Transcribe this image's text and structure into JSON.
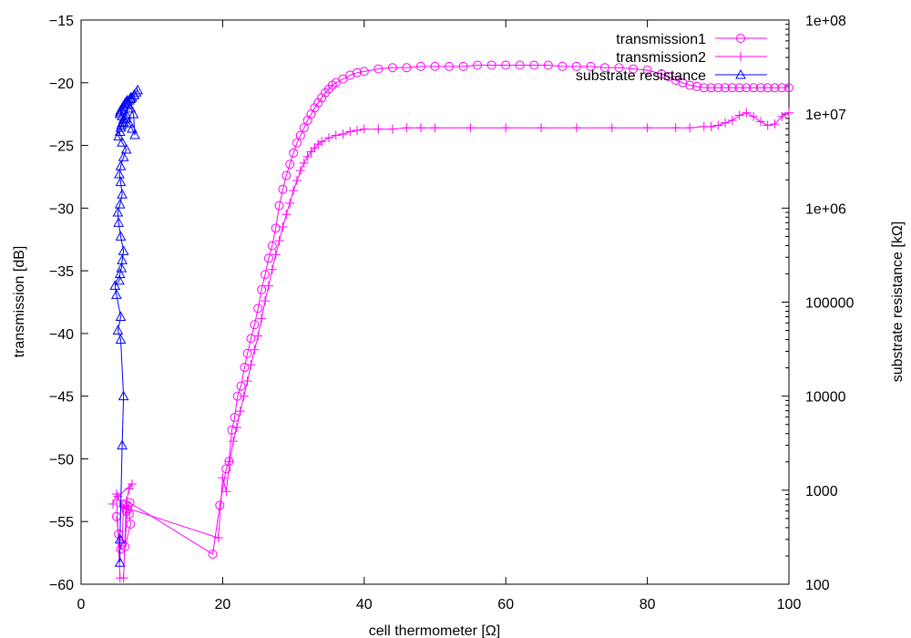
{
  "chart_data": {
    "type": "scatter",
    "title": "",
    "xlabel": "cell thermometer [Ω]",
    "ylabel": "transmission [dB]",
    "y2label": "substrate resistance [kΩ]",
    "xlim": [
      0,
      100
    ],
    "ylim": [
      -60,
      -15
    ],
    "y2lim": [
      100,
      100000000
    ],
    "y2_scale": "log",
    "grid": false,
    "legend_position": "top-right",
    "x_ticks": [
      "0",
      "20",
      "40",
      "60",
      "80",
      "100"
    ],
    "y_ticks": [
      "−60",
      "−55",
      "−50",
      "−45",
      "−40",
      "−35",
      "−30",
      "−25",
      "−20",
      "−15"
    ],
    "y2_ticks": [
      "100",
      "1000",
      "10000",
      "100000",
      "1e+06",
      "1e+07",
      "1e+08"
    ],
    "colors": {
      "transmission": "#ff00ff",
      "substrate": "#0000ff"
    },
    "series": [
      {
        "name": "transmission1",
        "axis": "left",
        "marker": "circle",
        "x": [
          5.0,
          5.3,
          5.6,
          5.8,
          6.0,
          6.4,
          6.6,
          6.8,
          7.0,
          6.2,
          6.5,
          6.9,
          18.6,
          19.6,
          20.5,
          20.9,
          21.3,
          21.7,
          22.1,
          22.6,
          23.1,
          23.5,
          24.0,
          24.5,
          25.0,
          25.5,
          26.0,
          26.5,
          27.0,
          27.5,
          28.0,
          28.5,
          29.0,
          29.5,
          30.0,
          30.5,
          31.0,
          31.5,
          32.0,
          32.5,
          33.0,
          33.5,
          34.0,
          34.5,
          35.0,
          35.5,
          36.0,
          37.0,
          38.0,
          39.0,
          40.0,
          42.0,
          44.0,
          46.0,
          48.0,
          50.0,
          52.0,
          54.0,
          56.0,
          58.0,
          60.0,
          62.0,
          64.0,
          66.0,
          68.0,
          70.0,
          72.0,
          74.0,
          76.0,
          78.0,
          80.0,
          82.0,
          83.0,
          84.0,
          85.0,
          86.0,
          87.0,
          88.0,
          89.0,
          90.0,
          91.0,
          92.0,
          93.0,
          94.0,
          95.0,
          96.0,
          97.0,
          98.0,
          99.0,
          100.0
        ],
        "y": [
          -54.6,
          -56.0,
          -57.2,
          -56.8,
          -53.6,
          -54.2,
          -53.8,
          -54.4,
          -55.2,
          -57.0,
          -54.0,
          -53.5,
          -57.6,
          -53.7,
          -50.8,
          -50.2,
          -47.7,
          -46.7,
          -45.0,
          -44.2,
          -42.7,
          -41.6,
          -40.4,
          -39.3,
          -38.0,
          -36.5,
          -35.3,
          -34.0,
          -33.0,
          -31.6,
          -29.8,
          -28.5,
          -27.4,
          -26.5,
          -25.6,
          -24.8,
          -24.2,
          -23.6,
          -23.0,
          -22.5,
          -22.0,
          -21.6,
          -21.2,
          -20.8,
          -20.5,
          -20.2,
          -20.0,
          -19.7,
          -19.4,
          -19.2,
          -19.1,
          -18.9,
          -18.8,
          -18.8,
          -18.7,
          -18.7,
          -18.7,
          -18.7,
          -18.6,
          -18.6,
          -18.6,
          -18.6,
          -18.6,
          -18.6,
          -18.7,
          -18.7,
          -18.7,
          -18.8,
          -18.8,
          -18.9,
          -19.0,
          -19.3,
          -19.5,
          -19.8,
          -20.0,
          -20.2,
          -20.3,
          -20.4,
          -20.4,
          -20.4,
          -20.4,
          -20.4,
          -20.4,
          -20.4,
          -20.4,
          -20.4,
          -20.4,
          -20.4,
          -20.4,
          -20.4
        ]
      },
      {
        "name": "transmission2",
        "axis": "left",
        "marker": "plus",
        "x": [
          4.5,
          5.0,
          5.5,
          6.0,
          6.4,
          6.8,
          7.2,
          5.2,
          5.8,
          19.4,
          20.0,
          20.5,
          21.0,
          21.5,
          22.0,
          22.5,
          23.0,
          23.5,
          24.0,
          24.5,
          25.0,
          25.5,
          26.0,
          26.5,
          27.0,
          27.5,
          28.0,
          28.5,
          29.0,
          29.5,
          30.0,
          30.5,
          31.0,
          31.5,
          32.0,
          32.5,
          33.0,
          33.5,
          34.0,
          35.0,
          36.0,
          37.0,
          38.0,
          39.0,
          40.0,
          42.0,
          44.0,
          46.0,
          48.0,
          50.0,
          55.0,
          60.0,
          65.0,
          70.0,
          75.0,
          80.0,
          84.0,
          86.0,
          88.0,
          89.0,
          90.0,
          91.0,
          92.0,
          93.0,
          94.0,
          95.0,
          96.0,
          97.0,
          98.0,
          99.0,
          100.0
        ],
        "y": [
          -53.6,
          -52.8,
          -59.5,
          -59.5,
          -53.4,
          -52.4,
          -52.0,
          -53.0,
          -53.8,
          -56.3,
          -51.5,
          -52.6,
          -50.2,
          -48.6,
          -47.5,
          -46.2,
          -45.0,
          -43.8,
          -42.5,
          -41.3,
          -40.2,
          -38.8,
          -37.4,
          -36.2,
          -34.9,
          -33.7,
          -32.6,
          -31.5,
          -30.5,
          -29.6,
          -28.6,
          -27.8,
          -27.0,
          -26.4,
          -25.9,
          -25.5,
          -25.2,
          -24.9,
          -24.7,
          -24.4,
          -24.2,
          -24.1,
          -23.9,
          -23.8,
          -23.7,
          -23.7,
          -23.7,
          -23.6,
          -23.6,
          -23.6,
          -23.6,
          -23.6,
          -23.6,
          -23.6,
          -23.6,
          -23.6,
          -23.6,
          -23.6,
          -23.5,
          -23.5,
          -23.4,
          -23.2,
          -23.0,
          -22.6,
          -22.4,
          -22.7,
          -23.1,
          -23.4,
          -23.3,
          -22.7,
          -22.4
        ]
      },
      {
        "name": "substrate resistance",
        "axis": "right",
        "marker": "triangle",
        "x": [
          5.5,
          5.5,
          5.8,
          6.0,
          5.6,
          5.2,
          5.6,
          5.0,
          4.8,
          5.4,
          5.5,
          5.7,
          5.8,
          6.0,
          5.6,
          5.3,
          5.2,
          5.5,
          5.8,
          5.6,
          5.4,
          5.6,
          6.0,
          6.4,
          5.8,
          5.3,
          5.5,
          5.6,
          5.8,
          6.0,
          5.8,
          5.5,
          5.6,
          5.9,
          6.2,
          6.5,
          6.8,
          7.0,
          7.2,
          7.5,
          7.8,
          8.0,
          7.5,
          7.0,
          6.5,
          6.2,
          6.0,
          5.8,
          5.5,
          6.3,
          6.8,
          7.2,
          7.6,
          7.4,
          7.0,
          6.6,
          6.4,
          6.0,
          5.7
        ],
        "y": [
          170,
          300,
          3000,
          10000,
          40000,
          50000,
          70000,
          120000,
          150000,
          170000,
          200000,
          230000,
          280000,
          350000,
          500000,
          700000,
          900000,
          1100000,
          1400000,
          1900000,
          2300000,
          2800000,
          3500000,
          4200000,
          5000000,
          5800000,
          6500000,
          7200000,
          8000000,
          8800000,
          9500000,
          10500000,
          11000000,
          12000000,
          13000000,
          13500000,
          14000000,
          14500000,
          15000000,
          16000000,
          17000000,
          18000000,
          16000000,
          15000000,
          14000000,
          13000000,
          12000000,
          11000000,
          10000000,
          9000000,
          8000000,
          7000000,
          6000000,
          10000000,
          11500000,
          12500000,
          9800000,
          8200000,
          7600000
        ]
      }
    ]
  }
}
